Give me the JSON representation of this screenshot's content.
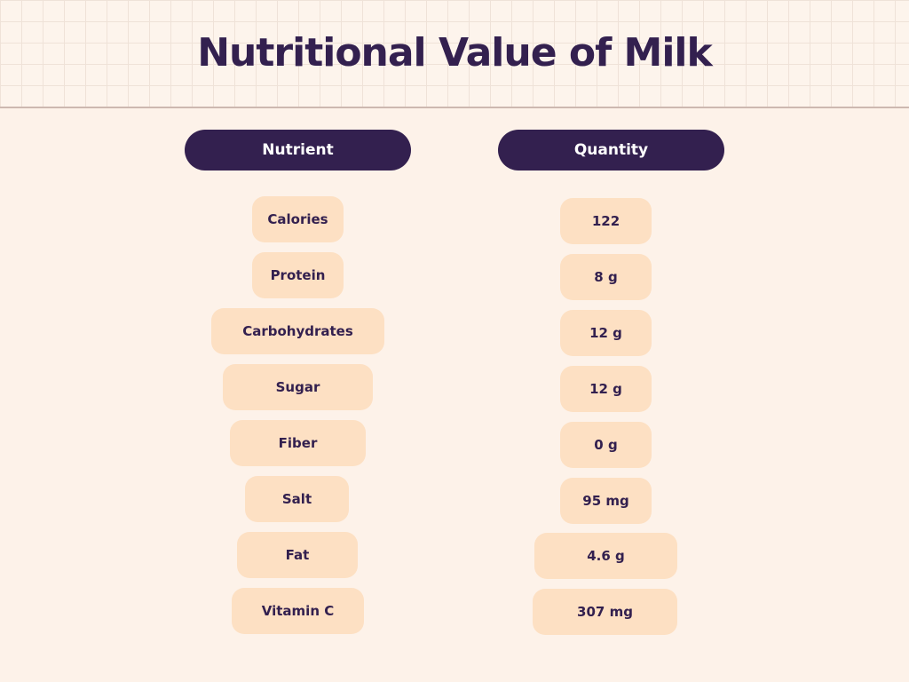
{
  "title": "Nutritional Value of Milk",
  "headers": {
    "nutrient": "Nutrient",
    "quantity": "Quantity"
  },
  "rows": [
    {
      "nutrient": "Calories",
      "quantity": "122"
    },
    {
      "nutrient": "Protein",
      "quantity": "8 g"
    },
    {
      "nutrient": "Carbohydrates",
      "quantity": "12 g"
    },
    {
      "nutrient": "Sugar",
      "quantity": "12 g"
    },
    {
      "nutrient": "Fiber",
      "quantity": "0 g"
    },
    {
      "nutrient": "Salt",
      "quantity": "95 mg"
    },
    {
      "nutrient": "Fat",
      "quantity": "4.6 g"
    },
    {
      "nutrient": "Vitamin C",
      "quantity": "307 mg"
    }
  ],
  "colors": {
    "background": "#fdf2e9",
    "header_pill": "#33204f",
    "cell_pill": "#fde0c3",
    "text": "#33204f"
  }
}
